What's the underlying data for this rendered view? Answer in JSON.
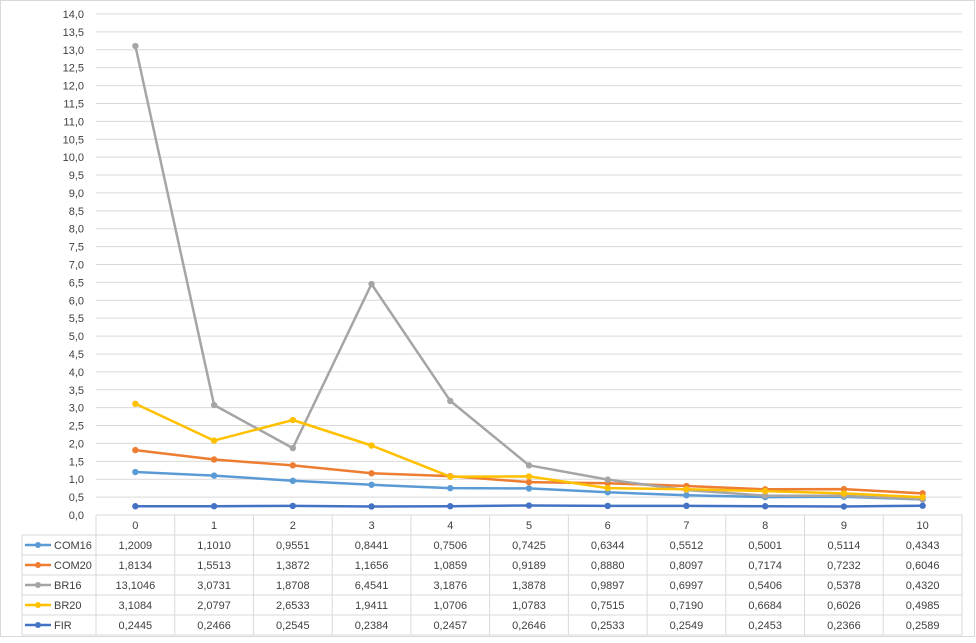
{
  "chart_data": {
    "type": "line",
    "title": "",
    "xlabel": "",
    "ylabel": "",
    "x": [
      "0",
      "1",
      "2",
      "3",
      "4",
      "5",
      "6",
      "7",
      "8",
      "9",
      "10"
    ],
    "ylim": [
      0,
      14
    ],
    "y_step": 0.5,
    "y_ticks": [
      "0,0",
      "0,5",
      "1,0",
      "1,5",
      "2,0",
      "2,5",
      "3,0",
      "3,5",
      "4,0",
      "4,5",
      "5,0",
      "5,5",
      "6,0",
      "6,5",
      "7,0",
      "7,5",
      "8,0",
      "8,5",
      "9,0",
      "9,5",
      "10,0",
      "10,5",
      "11,0",
      "11,5",
      "12,0",
      "12,5",
      "13,0",
      "13,5",
      "14,0"
    ],
    "grid": true,
    "legend": "data-table",
    "series": [
      {
        "name": "COM16",
        "color": "#5b9bd5",
        "values": [
          1.2009,
          1.101,
          0.9551,
          0.8441,
          0.7506,
          0.7425,
          0.6344,
          0.5512,
          0.5001,
          0.5114,
          0.4343
        ],
        "labels": [
          "1,2009",
          "1,1010",
          "0,9551",
          "0,8441",
          "0,7506",
          "0,7425",
          "0,6344",
          "0,5512",
          "0,5001",
          "0,5114",
          "0,4343"
        ]
      },
      {
        "name": "COM20",
        "color": "#ed7d31",
        "values": [
          1.8134,
          1.5513,
          1.3872,
          1.1656,
          1.0859,
          0.9189,
          0.888,
          0.8097,
          0.7174,
          0.7232,
          0.6046
        ],
        "labels": [
          "1,8134",
          "1,5513",
          "1,3872",
          "1,1656",
          "1,0859",
          "0,9189",
          "0,8880",
          "0,8097",
          "0,7174",
          "0,7232",
          "0,6046"
        ]
      },
      {
        "name": "BR16",
        "color": "#a5a5a5",
        "values": [
          13.1046,
          3.0731,
          1.8708,
          6.4541,
          3.1876,
          1.3878,
          0.9897,
          0.6997,
          0.5406,
          0.5378,
          0.432
        ],
        "labels": [
          "13,1046",
          "3,0731",
          "1,8708",
          "6,4541",
          "3,1876",
          "1,3878",
          "0,9897",
          "0,6997",
          "0,5406",
          "0,5378",
          "0,4320"
        ]
      },
      {
        "name": "BR20",
        "color": "#ffc000",
        "values": [
          3.1084,
          2.0797,
          2.6533,
          1.9411,
          1.0706,
          1.0783,
          0.7515,
          0.719,
          0.6684,
          0.6026,
          0.4985
        ],
        "labels": [
          "3,1084",
          "2,0797",
          "2,6533",
          "1,9411",
          "1,0706",
          "1,0783",
          "0,7515",
          "0,7190",
          "0,6684",
          "0,6026",
          "0,4985"
        ]
      },
      {
        "name": "FIR",
        "color": "#4472c4",
        "values": [
          0.2445,
          0.2466,
          0.2545,
          0.2384,
          0.2457,
          0.2646,
          0.2533,
          0.2549,
          0.2453,
          0.2366,
          0.2589
        ],
        "labels": [
          "0,2445",
          "0,2466",
          "0,2545",
          "0,2384",
          "0,2457",
          "0,2646",
          "0,2533",
          "0,2549",
          "0,2453",
          "0,2366",
          "0,2589"
        ]
      }
    ]
  }
}
